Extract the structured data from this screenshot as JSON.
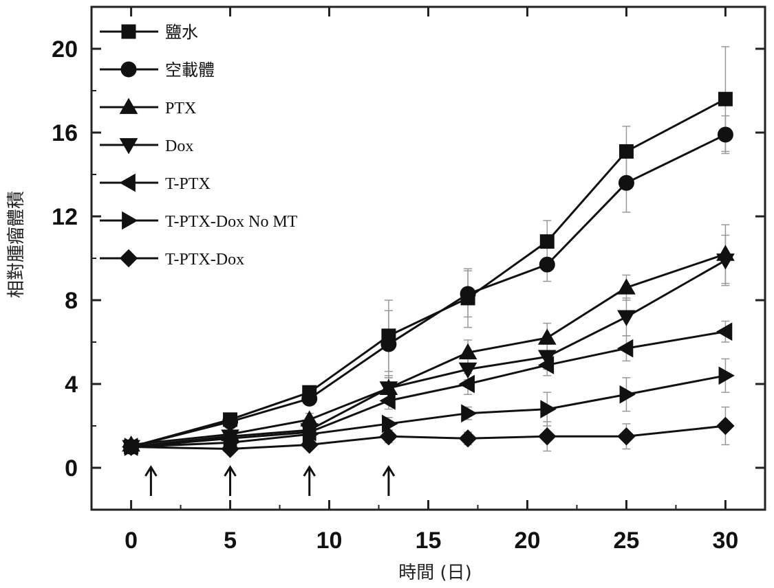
{
  "chart_data": {
    "type": "line",
    "title": "",
    "xlabel": "時間 (日)",
    "ylabel": "相對腫瘤體積",
    "xlim": [
      -2,
      32
    ],
    "ylim": [
      -2,
      22
    ],
    "xticks": [
      0,
      5,
      10,
      15,
      20,
      25,
      30
    ],
    "yticks": [
      0,
      4,
      8,
      12,
      16,
      20
    ],
    "grid": false,
    "legend_position": "top-left",
    "annotations": {
      "dose_arrows_at_day": [
        1,
        5,
        9,
        13
      ]
    },
    "x": [
      0,
      5,
      9,
      13,
      17,
      21,
      25,
      30
    ],
    "series": [
      {
        "name": "鹽水",
        "marker": "square",
        "values": [
          1.0,
          2.3,
          3.6,
          6.3,
          8.1,
          10.8,
          15.1,
          17.6
        ],
        "errors": [
          0.1,
          0.2,
          0.3,
          1.7,
          1.4,
          1.0,
          1.2,
          2.5
        ]
      },
      {
        "name": "空載體",
        "marker": "circle",
        "values": [
          1.0,
          2.2,
          3.3,
          5.9,
          8.3,
          9.7,
          13.6,
          15.9
        ],
        "errors": [
          0.1,
          0.2,
          0.3,
          1.6,
          1.1,
          0.8,
          1.4,
          0.9
        ]
      },
      {
        "name": "PTX",
        "marker": "triangle-up",
        "values": [
          1.1,
          1.6,
          2.3,
          3.8,
          5.5,
          6.2,
          8.6,
          10.2
        ],
        "errors": [
          0.1,
          0.2,
          0.3,
          0.6,
          0.6,
          0.7,
          0.6,
          1.4
        ]
      },
      {
        "name": "Dox",
        "marker": "triangle-down",
        "values": [
          1.0,
          1.5,
          1.8,
          3.8,
          4.7,
          5.3,
          7.2,
          9.9
        ],
        "errors": [
          0.1,
          0.2,
          0.3,
          0.5,
          0.5,
          0.6,
          0.9,
          1.2
        ]
      },
      {
        "name": "T-PTX",
        "marker": "triangle-left",
        "values": [
          1.0,
          1.4,
          1.7,
          3.2,
          4.0,
          4.9,
          5.7,
          6.5
        ],
        "errors": [
          0.1,
          0.2,
          0.2,
          0.4,
          0.5,
          0.5,
          0.6,
          0.5
        ]
      },
      {
        "name": "T-PTX-Dox No MT",
        "marker": "triangle-right",
        "values": [
          1.0,
          1.2,
          1.6,
          2.1,
          2.6,
          2.8,
          3.5,
          4.4
        ],
        "errors": [
          0.1,
          0.1,
          0.2,
          0.3,
          0.3,
          0.8,
          0.8,
          0.8
        ]
      },
      {
        "name": "T-PTX-Dox",
        "marker": "diamond",
        "values": [
          1.0,
          0.9,
          1.1,
          1.5,
          1.4,
          1.5,
          1.5,
          2.0
        ],
        "errors": [
          0.1,
          0.1,
          0.2,
          0.3,
          0.3,
          0.7,
          0.6,
          0.9
        ]
      }
    ]
  }
}
